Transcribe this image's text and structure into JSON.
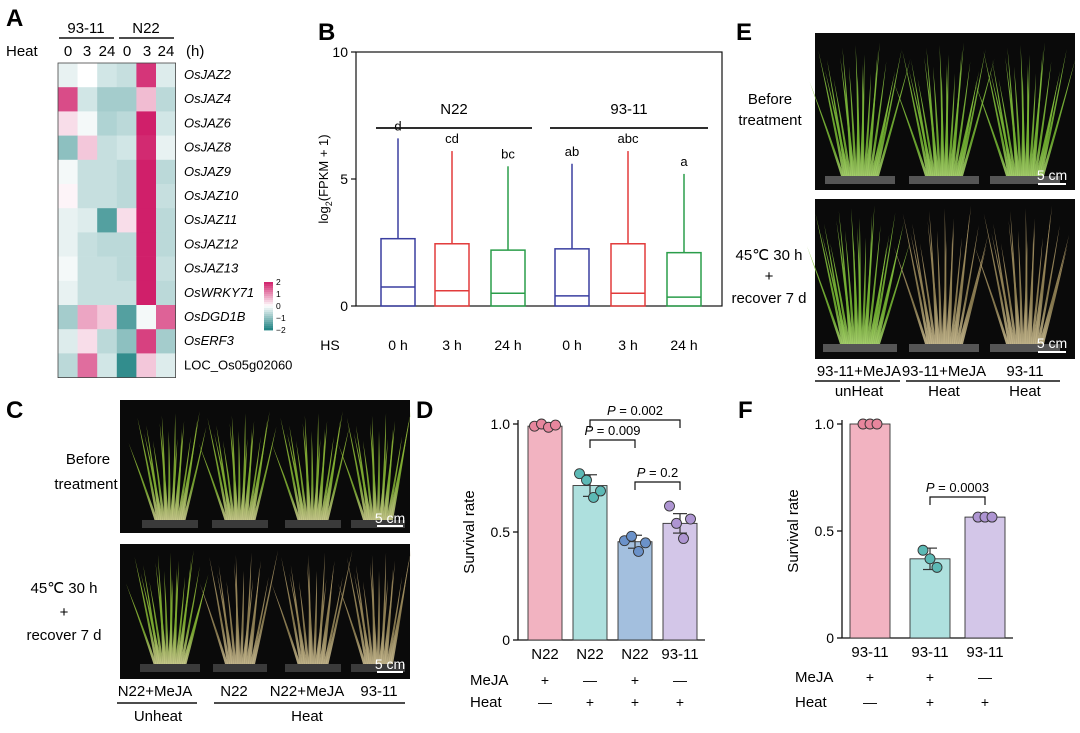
{
  "panels": {
    "A": "A",
    "B": "B",
    "C": "C",
    "D": "D",
    "E": "E",
    "F": "F"
  },
  "heatmap": {
    "groups": [
      "93-11",
      "N22"
    ],
    "heat_label": "Heat",
    "timepoints": [
      "0",
      "3",
      "24",
      "0",
      "3",
      "24"
    ],
    "unit": "(h)",
    "genes": [
      "OsJAZ2",
      "OsJAZ4",
      "OsJAZ6",
      "OsJAZ8",
      "OsJAZ9",
      "OsJAZ10",
      "OsJAZ11",
      "OsJAZ12",
      "OsJAZ13",
      "OsWRKY71",
      "OsDGD1B",
      "OsERF3",
      "LOC_Os05g02060"
    ],
    "values": [
      [
        -0.2,
        0.0,
        -0.4,
        -0.5,
        1.8,
        -0.3
      ],
      [
        1.6,
        -0.4,
        -0.8,
        -0.8,
        0.6,
        -0.6
      ],
      [
        0.3,
        -0.1,
        -0.7,
        -0.6,
        2.0,
        -0.4
      ],
      [
        -1.0,
        0.5,
        -0.5,
        -0.4,
        1.9,
        -0.2
      ],
      [
        -0.1,
        -0.5,
        -0.5,
        -0.6,
        2.0,
        -0.6
      ],
      [
        0.1,
        -0.5,
        -0.5,
        -0.6,
        2.0,
        -0.5
      ],
      [
        -0.2,
        -0.3,
        -1.5,
        0.3,
        2.0,
        -0.6
      ],
      [
        -0.2,
        -0.5,
        -0.6,
        -0.6,
        2.0,
        -0.6
      ],
      [
        -0.1,
        -0.5,
        -0.5,
        -0.6,
        2.0,
        -0.5
      ],
      [
        -0.2,
        -0.5,
        -0.5,
        -0.5,
        2.0,
        -0.6
      ],
      [
        -0.8,
        0.8,
        0.5,
        -1.5,
        -0.1,
        1.4
      ],
      [
        -0.3,
        0.3,
        -0.6,
        -1.0,
        1.7,
        -0.8
      ],
      [
        -0.6,
        1.3,
        -0.4,
        -1.8,
        0.5,
        -0.3
      ]
    ],
    "legend_ticks": [
      "2",
      "1",
      "0",
      "−1",
      "−2"
    ],
    "colors": {
      "low": "#1b8080",
      "mid": "#ffffff",
      "high": "#d01f6a"
    }
  },
  "chart_data": [
    {
      "type": "box",
      "panel": "B",
      "ylabel": "log2(FPKM + 1)",
      "ylabel_main": "log",
      "ylabel_sub": "2",
      "ylabel_rest": "(FPKM + 1)",
      "ylim": [
        0,
        10
      ],
      "yticks": [
        "0",
        "5",
        "10"
      ],
      "x_axis_label": "HS",
      "categories": [
        "0 h",
        "3 h",
        "24 h",
        "0 h",
        "3 h",
        "24 h"
      ],
      "groups": [
        {
          "name": "N22"
        },
        {
          "name": "93-11"
        }
      ],
      "boxes": [
        {
          "q1": 0.0,
          "median": 0.75,
          "q3": 2.65,
          "min": 0.0,
          "max": 6.6,
          "letter": "d",
          "color": "#3a3fa0"
        },
        {
          "q1": 0.0,
          "median": 0.6,
          "q3": 2.45,
          "min": 0.0,
          "max": 6.1,
          "letter": "cd",
          "color": "#e23b3b"
        },
        {
          "q1": 0.0,
          "median": 0.5,
          "q3": 2.2,
          "min": 0.0,
          "max": 5.5,
          "letter": "bc",
          "color": "#2a9d4a"
        },
        {
          "q1": 0.0,
          "median": 0.4,
          "q3": 2.25,
          "min": 0.0,
          "max": 5.6,
          "letter": "ab",
          "color": "#3a3fa0"
        },
        {
          "q1": 0.0,
          "median": 0.5,
          "q3": 2.45,
          "min": 0.0,
          "max": 6.1,
          "letter": "abc",
          "color": "#e23b3b"
        },
        {
          "q1": 0.0,
          "median": 0.35,
          "q3": 2.1,
          "min": 0.0,
          "max": 5.2,
          "letter": "a",
          "color": "#2a9d4a"
        }
      ]
    },
    {
      "type": "bar",
      "panel": "D",
      "ylabel": "Survival rate",
      "ylim": [
        0,
        1.0
      ],
      "yticks": [
        "0",
        "0.5",
        "1.0"
      ],
      "categories": [
        "N22",
        "N22",
        "N22",
        "93-11"
      ],
      "meja": [
        "+",
        "—",
        "+",
        "—"
      ],
      "heat": [
        "—",
        "+",
        "+",
        "+"
      ],
      "meja_label": "MeJA",
      "heat_label": "Heat",
      "values": [
        0.99,
        0.715,
        0.455,
        0.54
      ],
      "errors": [
        0.01,
        0.05,
        0.03,
        0.045
      ],
      "points": [
        [
          0.99,
          1.0,
          0.985,
          0.995
        ],
        [
          0.77,
          0.74,
          0.66,
          0.69
        ],
        [
          0.46,
          0.48,
          0.41,
          0.45
        ],
        [
          0.62,
          0.54,
          0.47,
          0.56
        ]
      ],
      "colors": [
        "#f2b3c1",
        "#aee0de",
        "#a3bfde",
        "#d3c6e8"
      ],
      "point_colors": [
        "#e7869d",
        "#5cb9b5",
        "#6b92c9",
        "#ae95d2"
      ],
      "comparisons": [
        {
          "from": 1,
          "to": 2,
          "label": "P = 0.009"
        },
        {
          "from": 1,
          "to": 3,
          "label": "P = 0.002"
        },
        {
          "from": 2,
          "to": 3,
          "label": "P = 0.2"
        }
      ]
    },
    {
      "type": "bar",
      "panel": "F",
      "ylabel": "Survival rate",
      "ylim": [
        0,
        1.0
      ],
      "yticks": [
        "0",
        "0.5",
        "1.0"
      ],
      "categories": [
        "93-11",
        "93-11",
        "93-11"
      ],
      "meja": [
        "+",
        "+",
        "—"
      ],
      "heat": [
        "—",
        "+",
        "+"
      ],
      "meja_label": "MeJA",
      "heat_label": "Heat",
      "values": [
        1.0,
        0.37,
        0.565
      ],
      "errors": [
        0.0,
        0.05,
        0.005
      ],
      "points": [
        [
          1.0,
          1.0,
          1.0
        ],
        [
          0.41,
          0.37,
          0.33
        ],
        [
          0.565,
          0.565,
          0.565
        ]
      ],
      "colors": [
        "#f2b3c1",
        "#aee0de",
        "#d3c6e8"
      ],
      "point_colors": [
        "#e7869d",
        "#5cb9b5",
        "#ae95d2"
      ],
      "comparisons": [
        {
          "from": 1,
          "to": 2,
          "label": "P = 0.0003"
        }
      ]
    }
  ],
  "photo_C": {
    "before_label_1": "Before",
    "before_label_2": "treatment",
    "after_label_1": "45℃ 30 h",
    "after_label_2": "+",
    "after_label_3": "recover 7 d",
    "scale": "5 cm",
    "captions": [
      "N22+MeJA",
      "N22",
      "N22+MeJA",
      "93-11"
    ],
    "group_unheat": "Unheat",
    "group_heat": "Heat"
  },
  "photo_E": {
    "before_label_1": "Before",
    "before_label_2": "treatment",
    "after_label_1": "45℃ 30 h",
    "after_label_2": "+",
    "after_label_3": "recover 7 d",
    "scale": "5 cm",
    "captions": [
      "93-11+MeJA",
      "93-11+MeJA",
      "93-11"
    ],
    "subcaptions": [
      "unHeat",
      "Heat",
      "Heat"
    ]
  }
}
